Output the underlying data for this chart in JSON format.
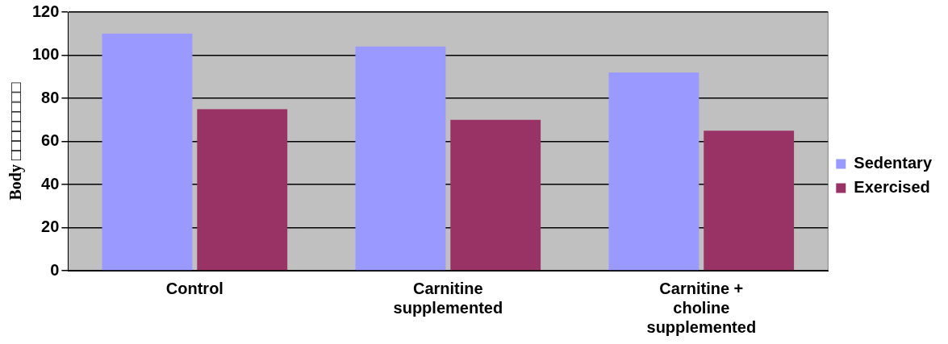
{
  "chart_data": {
    "type": "bar",
    "ylabel": "Body □□□□□□□□",
    "categories": [
      "Control",
      "Carnitine supplemented",
      "Carnitine + choline supplemented"
    ],
    "series": [
      {
        "name": "Sedentary",
        "color": "#9999ff",
        "values": [
          110,
          104,
          92
        ]
      },
      {
        "name": "Exercised",
        "color": "#993366",
        "values": [
          75,
          70,
          65
        ]
      }
    ],
    "ylim": [
      0,
      120
    ],
    "yticks": [
      0,
      20,
      40,
      60,
      80,
      100,
      120
    ],
    "grid": "y",
    "legend": "right"
  }
}
